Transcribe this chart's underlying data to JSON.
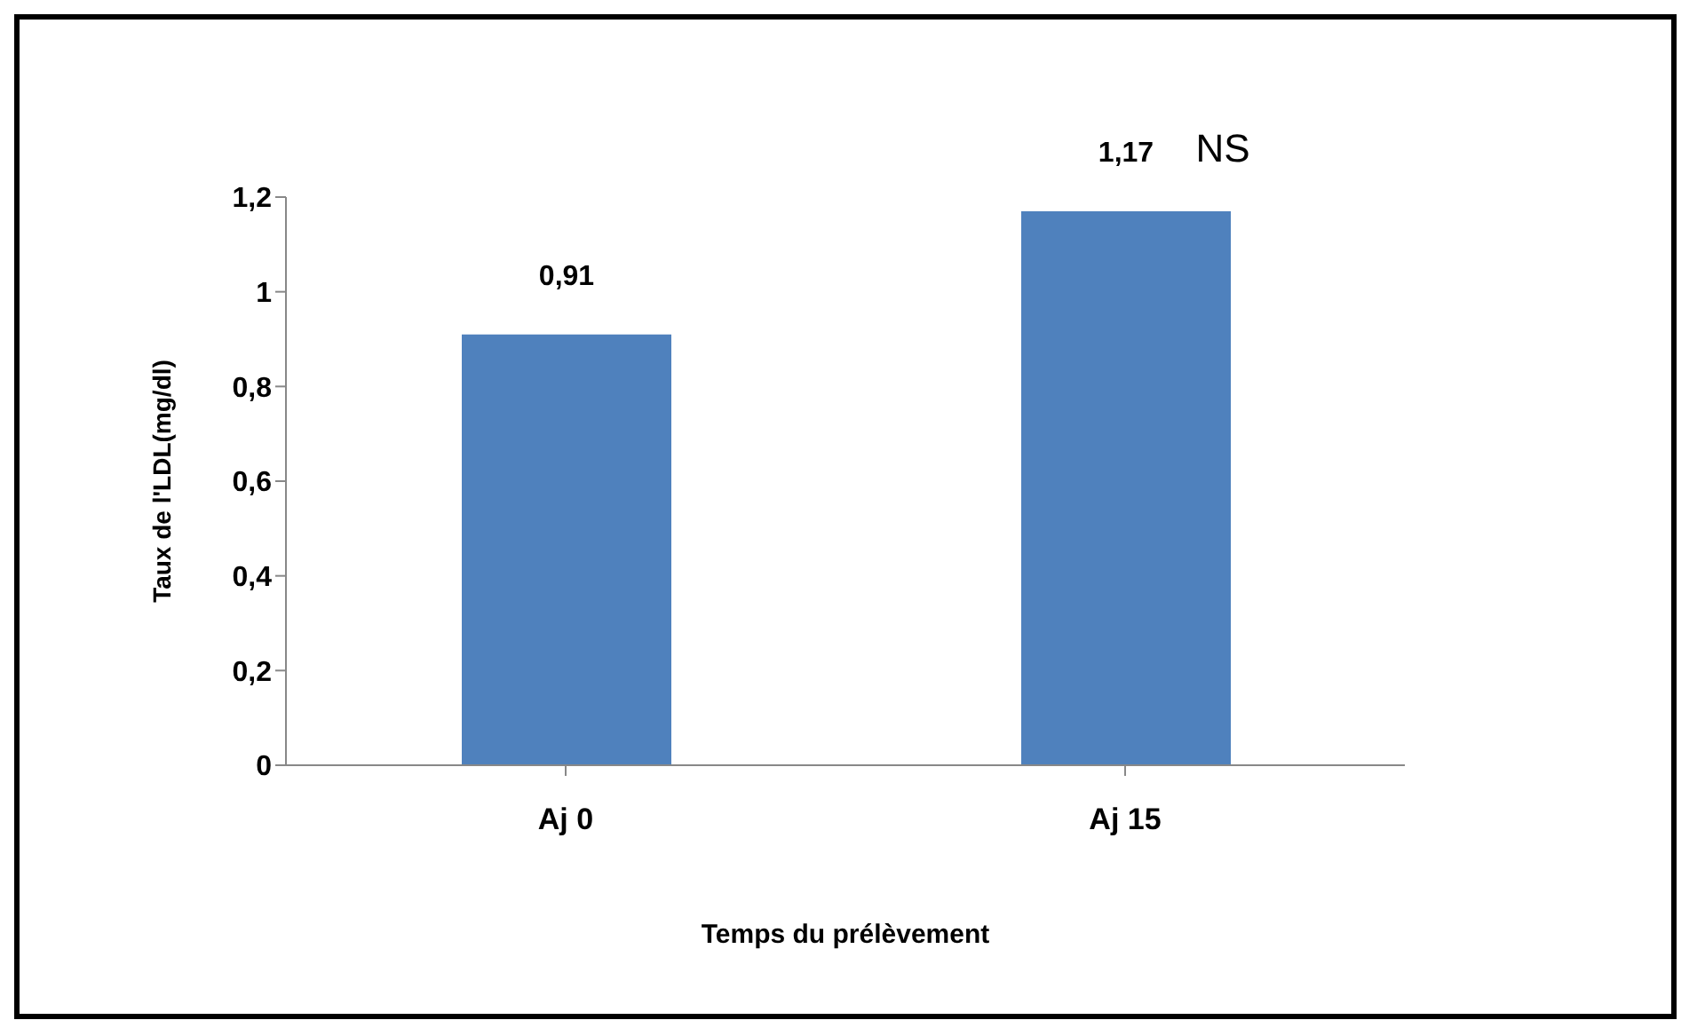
{
  "chart_data": {
    "type": "bar",
    "xlabel": "Temps du prélèvement",
    "ylabel": "Taux de l'LDL(mg/dl)",
    "categories": [
      "Aj 0",
      "Aj 15"
    ],
    "values": [
      0.91,
      1.17
    ],
    "value_labels": [
      "0,91",
      "1,17"
    ],
    "color": "#4f81bd",
    "ylim": [
      0,
      1.2
    ],
    "yticks": [
      {
        "value": 0,
        "label": "0"
      },
      {
        "value": 0.2,
        "label": "0,2"
      },
      {
        "value": 0.4,
        "label": "0,4"
      },
      {
        "value": 0.6,
        "label": "0,6"
      },
      {
        "value": 0.8,
        "label": "0,8"
      },
      {
        "value": 1,
        "label": "1"
      },
      {
        "value": 1.2,
        "label": "1,2"
      }
    ],
    "annotations": [
      {
        "text": "NS",
        "x": "Aj 15",
        "y": 1.17
      }
    ],
    "grid": false,
    "legend": false
  }
}
